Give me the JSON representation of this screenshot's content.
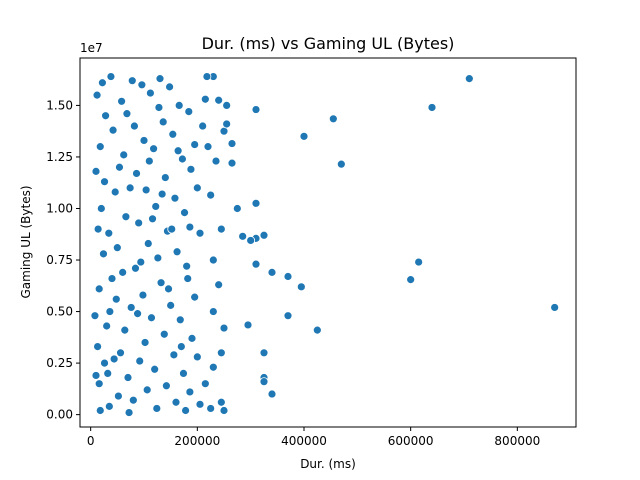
{
  "chart_data": {
    "type": "scatter",
    "title": "Dur. (ms) vs Gaming UL (Bytes)",
    "xlabel": "Dur. (ms)",
    "ylabel": "Gaming UL (Bytes)",
    "y_offset_label": "1e7",
    "xlim": [
      -20000,
      910000
    ],
    "ylim": [
      -600000,
      17300000
    ],
    "x_ticks": [
      0,
      200000,
      400000,
      600000,
      800000
    ],
    "x_tick_labels": [
      "0",
      "200000",
      "400000",
      "600000",
      "800000"
    ],
    "y_ticks": [
      0,
      2500000,
      5000000,
      7500000,
      10000000,
      12500000,
      15000000
    ],
    "y_tick_labels": [
      "0.00",
      "0.25",
      "0.50",
      "0.75",
      "1.00",
      "1.25",
      "1.50"
    ],
    "grid": false,
    "marker_color": "#1f77b4",
    "points": [
      [
        710000,
        16300000
      ],
      [
        640000,
        14900000
      ],
      [
        455000,
        14350000
      ],
      [
        400000,
        13500000
      ],
      [
        470000,
        12150000
      ],
      [
        870000,
        5200000
      ],
      [
        615000,
        7400000
      ],
      [
        600000,
        6550000
      ],
      [
        340000,
        6900000
      ],
      [
        370000,
        6700000
      ],
      [
        395000,
        6200000
      ],
      [
        370000,
        4800000
      ],
      [
        425000,
        4100000
      ],
      [
        295000,
        4350000
      ],
      [
        310000,
        7300000
      ],
      [
        325000,
        1800000
      ],
      [
        325000,
        1600000
      ],
      [
        340000,
        1000000
      ],
      [
        325000,
        3000000
      ],
      [
        310000,
        8550000
      ],
      [
        325000,
        8700000
      ],
      [
        285000,
        8650000
      ],
      [
        300000,
        8450000
      ],
      [
        310000,
        10250000
      ],
      [
        310000,
        14800000
      ],
      [
        275000,
        10000000
      ],
      [
        265000,
        12200000
      ],
      [
        255000,
        15000000
      ],
      [
        250000,
        13750000
      ],
      [
        265000,
        13150000
      ],
      [
        255000,
        14100000
      ],
      [
        240000,
        15250000
      ],
      [
        230000,
        16400000
      ],
      [
        218000,
        16400000
      ],
      [
        215000,
        15300000
      ],
      [
        210000,
        14000000
      ],
      [
        220000,
        13000000
      ],
      [
        235000,
        12300000
      ],
      [
        225000,
        10650000
      ],
      [
        245000,
        9000000
      ],
      [
        230000,
        7500000
      ],
      [
        240000,
        6300000
      ],
      [
        230000,
        5000000
      ],
      [
        250000,
        4200000
      ],
      [
        245000,
        3000000
      ],
      [
        230000,
        2300000
      ],
      [
        215000,
        1500000
      ],
      [
        245000,
        600000
      ],
      [
        250000,
        200000
      ],
      [
        225000,
        300000
      ],
      [
        205000,
        500000
      ],
      [
        200000,
        2800000
      ],
      [
        195000,
        5700000
      ],
      [
        205000,
        8800000
      ],
      [
        200000,
        11000000
      ],
      [
        195000,
        13100000
      ],
      [
        12000,
        15500000
      ],
      [
        18000,
        13000000
      ],
      [
        14000,
        9000000
      ],
      [
        16000,
        6100000
      ],
      [
        13000,
        3300000
      ],
      [
        16000,
        1500000
      ],
      [
        18000,
        200000
      ],
      [
        22000,
        16100000
      ],
      [
        28000,
        14500000
      ],
      [
        26000,
        11300000
      ],
      [
        24000,
        7800000
      ],
      [
        30000,
        4300000
      ],
      [
        32000,
        2000000
      ],
      [
        35000,
        400000
      ],
      [
        38000,
        16400000
      ],
      [
        42000,
        13800000
      ],
      [
        46000,
        10800000
      ],
      [
        50000,
        8100000
      ],
      [
        48000,
        5600000
      ],
      [
        44000,
        2700000
      ],
      [
        52000,
        900000
      ],
      [
        58000,
        15200000
      ],
      [
        62000,
        12600000
      ],
      [
        66000,
        9600000
      ],
      [
        60000,
        6900000
      ],
      [
        64000,
        4100000
      ],
      [
        70000,
        1800000
      ],
      [
        72000,
        100000
      ],
      [
        78000,
        16200000
      ],
      [
        82000,
        14000000
      ],
      [
        86000,
        11700000
      ],
      [
        90000,
        9300000
      ],
      [
        84000,
        7100000
      ],
      [
        88000,
        4900000
      ],
      [
        92000,
        2600000
      ],
      [
        80000,
        700000
      ],
      [
        96000,
        16000000
      ],
      [
        100000,
        13300000
      ],
      [
        104000,
        10900000
      ],
      [
        108000,
        8300000
      ],
      [
        98000,
        5800000
      ],
      [
        102000,
        3500000
      ],
      [
        106000,
        1200000
      ],
      [
        112000,
        15600000
      ],
      [
        118000,
        12900000
      ],
      [
        122000,
        10100000
      ],
      [
        126000,
        7600000
      ],
      [
        114000,
        4700000
      ],
      [
        120000,
        2200000
      ],
      [
        124000,
        300000
      ],
      [
        130000,
        16300000
      ],
      [
        136000,
        14200000
      ],
      [
        140000,
        11500000
      ],
      [
        144000,
        8900000
      ],
      [
        132000,
        6400000
      ],
      [
        138000,
        3900000
      ],
      [
        142000,
        1400000
      ],
      [
        148000,
        15900000
      ],
      [
        154000,
        13600000
      ],
      [
        158000,
        10500000
      ],
      [
        162000,
        7900000
      ],
      [
        150000,
        5300000
      ],
      [
        156000,
        2900000
      ],
      [
        160000,
        600000
      ],
      [
        166000,
        15000000
      ],
      [
        172000,
        12400000
      ],
      [
        176000,
        9800000
      ],
      [
        180000,
        7200000
      ],
      [
        168000,
        4600000
      ],
      [
        174000,
        2000000
      ],
      [
        178000,
        200000
      ],
      [
        184000,
        14700000
      ],
      [
        188000,
        11900000
      ],
      [
        186000,
        9100000
      ],
      [
        182000,
        6600000
      ],
      [
        190000,
        3700000
      ],
      [
        186000,
        1100000
      ],
      [
        20000,
        10000000
      ],
      [
        34000,
        8800000
      ],
      [
        40000,
        6600000
      ],
      [
        54000,
        12000000
      ],
      [
        68000,
        14600000
      ],
      [
        74000,
        11000000
      ],
      [
        76000,
        5200000
      ],
      [
        94000,
        7400000
      ],
      [
        110000,
        12300000
      ],
      [
        116000,
        9500000
      ],
      [
        128000,
        14900000
      ],
      [
        134000,
        10700000
      ],
      [
        146000,
        6100000
      ],
      [
        152000,
        9000000
      ],
      [
        164000,
        12800000
      ],
      [
        170000,
        3300000
      ],
      [
        56000,
        3000000
      ],
      [
        36000,
        5000000
      ],
      [
        26000,
        2500000
      ],
      [
        10000,
        11800000
      ],
      [
        8000,
        4800000
      ],
      [
        10000,
        1900000
      ]
    ]
  }
}
